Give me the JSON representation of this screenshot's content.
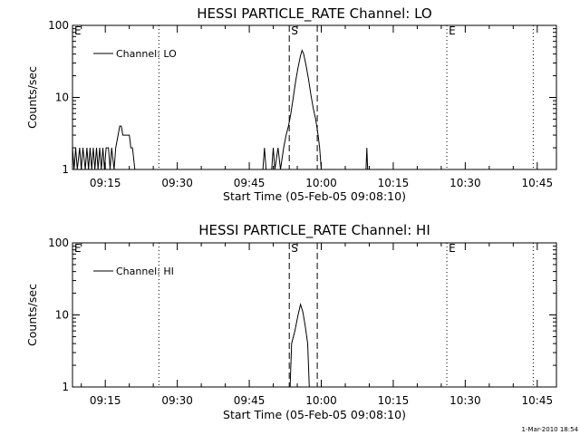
{
  "chart_data": [
    {
      "type": "line",
      "title": "HESSI PARTICLE_RATE Channel: LO",
      "xlabel": "Start Time (05-Feb-05 09:08:10)",
      "ylabel": "Counts/sec",
      "xlim": [
        "09:08:10",
        "10:49:00"
      ],
      "yscale": "log",
      "ylim": [
        1,
        100
      ],
      "x_ticks": [
        "09:15",
        "09:30",
        "09:45",
        "10:00",
        "10:15",
        "10:30",
        "10:45"
      ],
      "y_ticks": [
        "1",
        "10",
        "100"
      ],
      "legend": {
        "position": "top-left",
        "entries": [
          "Channel: LO"
        ]
      },
      "series": [
        {
          "name": "Channel: LO",
          "points": [
            [
              "09:08:10",
              2
            ],
            [
              "09:08:30",
              1
            ],
            [
              "09:08:50",
              2
            ],
            [
              "09:09:10",
              1
            ],
            [
              "09:09:40",
              2
            ],
            [
              "09:10:00",
              1
            ],
            [
              "09:10:20",
              2
            ],
            [
              "09:10:50",
              1
            ],
            [
              "09:11:10",
              2
            ],
            [
              "09:11:30",
              1
            ],
            [
              "09:11:50",
              2
            ],
            [
              "09:12:10",
              1
            ],
            [
              "09:12:30",
              2
            ],
            [
              "09:12:50",
              1
            ],
            [
              "09:13:10",
              2
            ],
            [
              "09:13:30",
              1
            ],
            [
              "09:13:50",
              2
            ],
            [
              "09:14:10",
              1
            ],
            [
              "09:14:30",
              2
            ],
            [
              "09:14:50",
              1
            ],
            [
              "09:15:10",
              2
            ],
            [
              "09:15:40",
              2
            ],
            [
              "09:16:00",
              1
            ],
            [
              "09:16:20",
              2
            ],
            [
              "09:16:50",
              1
            ],
            [
              "09:17:10",
              2
            ],
            [
              "09:17:40",
              3
            ],
            [
              "09:18:00",
              4
            ],
            [
              "09:18:20",
              4
            ],
            [
              "09:18:40",
              3
            ],
            [
              "09:19:00",
              3
            ],
            [
              "09:19:20",
              3
            ],
            [
              "09:19:40",
              3
            ],
            [
              "09:20:00",
              3
            ],
            [
              "09:20:20",
              2
            ],
            [
              "09:20:40",
              2
            ],
            [
              "09:21:10",
              1
            ],
            [
              "09:47:50",
              1
            ],
            [
              "09:48:10",
              2
            ],
            [
              "09:48:30",
              1
            ],
            [
              "09:49:40",
              1
            ],
            [
              "09:50:00",
              2
            ],
            [
              "09:50:20",
              1
            ],
            [
              "09:51:00",
              2
            ],
            [
              "09:51:30",
              1
            ],
            [
              "09:52:10",
              2
            ],
            [
              "09:52:40",
              3
            ],
            [
              "09:53:10",
              4
            ],
            [
              "09:53:40",
              6
            ],
            [
              "09:54:10",
              10
            ],
            [
              "09:54:40",
              17
            ],
            [
              "09:55:10",
              26
            ],
            [
              "09:55:40",
              38
            ],
            [
              "09:56:00",
              45
            ],
            [
              "09:56:20",
              40
            ],
            [
              "09:56:50",
              28
            ],
            [
              "09:57:20",
              18
            ],
            [
              "09:57:50",
              11
            ],
            [
              "09:58:20",
              7
            ],
            [
              "09:58:50",
              5
            ],
            [
              "09:59:20",
              3
            ],
            [
              "09:59:40",
              2
            ],
            [
              "10:00:00",
              1
            ],
            [
              "10:09:20",
              1
            ],
            [
              "10:09:30",
              2
            ],
            [
              "10:09:40",
              1
            ]
          ]
        }
      ],
      "annotations": {
        "vertical_dotted": [
          "09:26:10",
          "10:26:10",
          "10:44:10"
        ],
        "vertical_dashed": [
          "09:53:20",
          "09:59:10"
        ],
        "labels": [
          {
            "text": "E",
            "x": "09:08:10"
          },
          {
            "text": "S",
            "x": "09:53:20"
          },
          {
            "text": "E",
            "x": "10:26:10"
          }
        ]
      }
    },
    {
      "type": "line",
      "title": "HESSI PARTICLE_RATE Channel: HI",
      "xlabel": "Start Time (05-Feb-05 09:08:10)",
      "ylabel": "Counts/sec",
      "xlim": [
        "09:08:10",
        "10:49:00"
      ],
      "yscale": "log",
      "ylim": [
        1,
        100
      ],
      "x_ticks": [
        "09:15",
        "09:30",
        "09:45",
        "10:00",
        "10:15",
        "10:30",
        "10:45"
      ],
      "y_ticks": [
        "1",
        "10",
        "100"
      ],
      "legend": {
        "position": "top-left",
        "entries": [
          "Channel: HI"
        ]
      },
      "series": [
        {
          "name": "Channel: HI",
          "points": [
            [
              "09:53:30",
              1
            ],
            [
              "09:53:50",
              4
            ],
            [
              "09:54:30",
              6
            ],
            [
              "09:55:10",
              10
            ],
            [
              "09:55:40",
              14
            ],
            [
              "09:56:10",
              11
            ],
            [
              "09:56:40",
              7
            ],
            [
              "09:57:10",
              4
            ],
            [
              "09:57:30",
              1
            ]
          ]
        }
      ],
      "annotations": {
        "vertical_dotted": [
          "09:26:10",
          "10:26:10",
          "10:44:10"
        ],
        "vertical_dashed": [
          "09:53:20",
          "09:59:10"
        ],
        "labels": [
          {
            "text": "E",
            "x": "09:08:10"
          },
          {
            "text": "S",
            "x": "09:53:20"
          },
          {
            "text": "E",
            "x": "10:26:10"
          }
        ]
      }
    }
  ],
  "footer": {
    "timestamp": "1-Mar-2010 18:54"
  }
}
